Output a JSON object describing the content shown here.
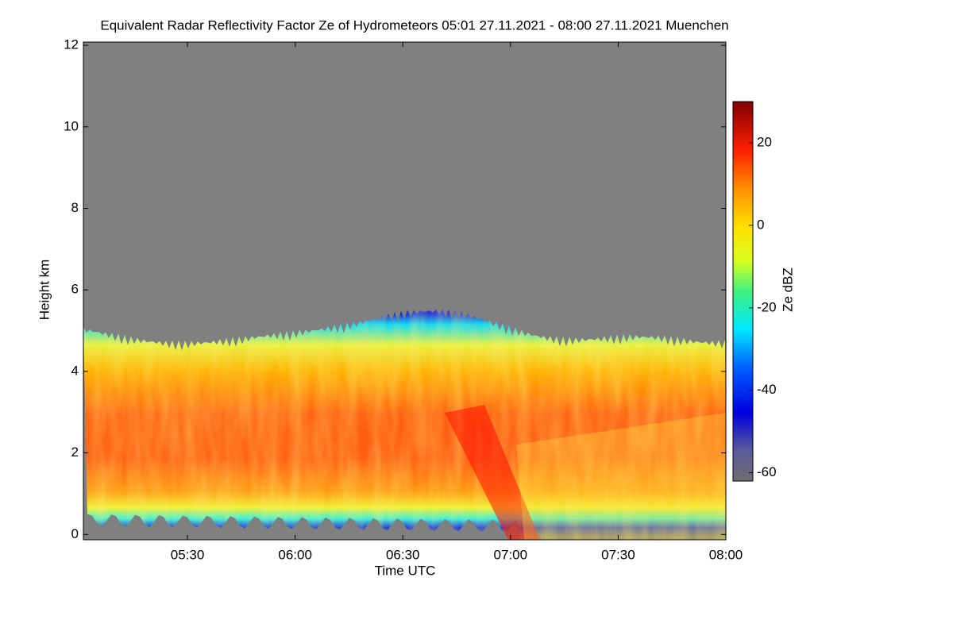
{
  "chart_data": {
    "type": "heatmap",
    "title": "Equivalent Radar Reflectivity Factor Ze of Hydrometeors   05:01 27.11.2021 - 08:00 27.11.2021 Muenchen",
    "x_label": "Time UTC",
    "y_label": "Height km",
    "xlim": [
      "05:01",
      "08:00"
    ],
    "xticks": [
      "05:30",
      "06:00",
      "06:30",
      "07:00",
      "07:30",
      "08:00"
    ],
    "ylim": [
      -0.13,
      12.08
    ],
    "yticks": [
      0,
      2,
      4,
      6,
      8,
      10,
      12
    ],
    "colorbar": {
      "label": "Ze dBZ",
      "lim": [
        -62,
        30
      ],
      "ticks": [
        -60,
        -40,
        -20,
        0,
        20
      ]
    }
  }
}
